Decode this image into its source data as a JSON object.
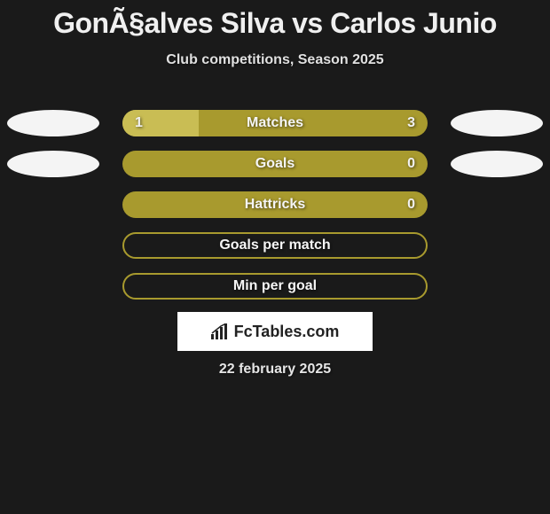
{
  "title": "GonÃ§alves Silva vs Carlos Junio",
  "subtitle": "Club competitions, Season 2025",
  "date": "22 february 2025",
  "logo": "FcTables.com",
  "colors": {
    "ellipse": "#f4f4f4",
    "player1_bar": "#c9bd54",
    "player2_bar": "#a89a2e",
    "bar_outline": "#a89a2e",
    "background": "#1a1a1a",
    "text": "#f0f0f0"
  },
  "rows": [
    {
      "label": "Matches",
      "left_value": "1",
      "right_value": "3",
      "left_pct": 25,
      "right_pct": 75,
      "show_ellipses": true,
      "left_bar_color": "#c9bd54",
      "right_bar_color": "#a89a2e",
      "outline_only": false
    },
    {
      "label": "Goals",
      "left_value": "",
      "right_value": "0",
      "left_pct": 0,
      "right_pct": 100,
      "show_ellipses": true,
      "left_bar_color": "#c9bd54",
      "right_bar_color": "#a89a2e",
      "outline_only": false
    },
    {
      "label": "Hattricks",
      "left_value": "",
      "right_value": "0",
      "left_pct": 0,
      "right_pct": 100,
      "show_ellipses": false,
      "left_bar_color": "#c9bd54",
      "right_bar_color": "#a89a2e",
      "outline_only": false
    },
    {
      "label": "Goals per match",
      "left_value": "",
      "right_value": "",
      "left_pct": 0,
      "right_pct": 0,
      "show_ellipses": false,
      "left_bar_color": "#c9bd54",
      "right_bar_color": "#a89a2e",
      "outline_only": true
    },
    {
      "label": "Min per goal",
      "left_value": "",
      "right_value": "",
      "left_pct": 0,
      "right_pct": 0,
      "show_ellipses": false,
      "left_bar_color": "#c9bd54",
      "right_bar_color": "#a89a2e",
      "outline_only": true
    }
  ]
}
